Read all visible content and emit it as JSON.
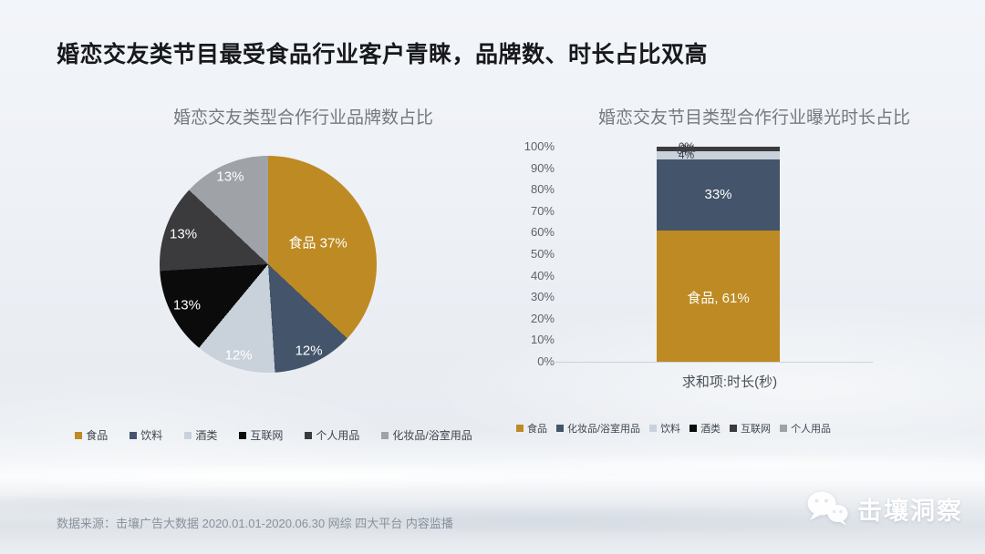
{
  "slide": {
    "title": "婚恋交友类节目最受食品行业客户青睐，品牌数、时长占比双高",
    "footer": "数据来源：击壤广告大数据 2020.01.01-2020.06.30 网综 四大平台 内容监播",
    "watermark_text": "击壤洞察",
    "watermark_icon": "wechat-icon"
  },
  "colors": {
    "gold": "#BE8A23",
    "navy": "#44546A",
    "light_gray": "#C9D1DB",
    "black": "#0B0B0C",
    "dark_gray": "#3B3B3D",
    "mid_gray": "#9FA2A6",
    "background": "#EDF1F5"
  },
  "chart_data": [
    {
      "type": "pie",
      "title": "婚恋交友类型合作行业品牌数占比",
      "legend_position": "bottom",
      "start_angle_deg": 0,
      "slices": [
        {
          "name": "食品",
          "value": 37,
          "label": "食品 37%",
          "color": "#BE8A23"
        },
        {
          "name": "饮料",
          "value": 12,
          "label": "12%",
          "color": "#44546A"
        },
        {
          "name": "酒类",
          "value": 12,
          "label": "12%",
          "color": "#C9D1DB"
        },
        {
          "name": "互联网",
          "value": 13,
          "label": "13%",
          "color": "#0B0B0C"
        },
        {
          "name": "个人用品",
          "value": 13,
          "label": "13%",
          "color": "#3B3B3D"
        },
        {
          "name": "化妆品/浴室用品",
          "value": 13,
          "label": "13%",
          "color": "#9FA2A6"
        }
      ]
    },
    {
      "type": "bar",
      "stacked": true,
      "title": "婚恋交友节目类型合作行业曝光时长占比",
      "xlabel": "求和项:时长(秒)",
      "categories": [
        "求和项:时长(秒)"
      ],
      "ylim": [
        0,
        100
      ],
      "yticks": [
        "0%",
        "10%",
        "20%",
        "30%",
        "40%",
        "50%",
        "60%",
        "70%",
        "80%",
        "90%",
        "100%"
      ],
      "grid": false,
      "legend_position": "bottom",
      "series": [
        {
          "name": "食品",
          "values": [
            61
          ],
          "label": "食品, 61%",
          "color": "#BE8A23"
        },
        {
          "name": "化妆品/浴室用品",
          "values": [
            33
          ],
          "label": "33%",
          "color": "#44546A"
        },
        {
          "name": "饮料",
          "values": [
            4
          ],
          "label": "4%",
          "color": "#C9D1DB"
        },
        {
          "name": "酒类",
          "values": [
            0
          ],
          "label": "0%",
          "color": "#0B0B0C"
        },
        {
          "name": "互联网",
          "values": [
            2
          ],
          "label": "2%",
          "color": "#3B3B3D"
        },
        {
          "name": "个人用品",
          "values": [
            0
          ],
          "label": "0%",
          "color": "#9FA2A6"
        }
      ]
    }
  ]
}
